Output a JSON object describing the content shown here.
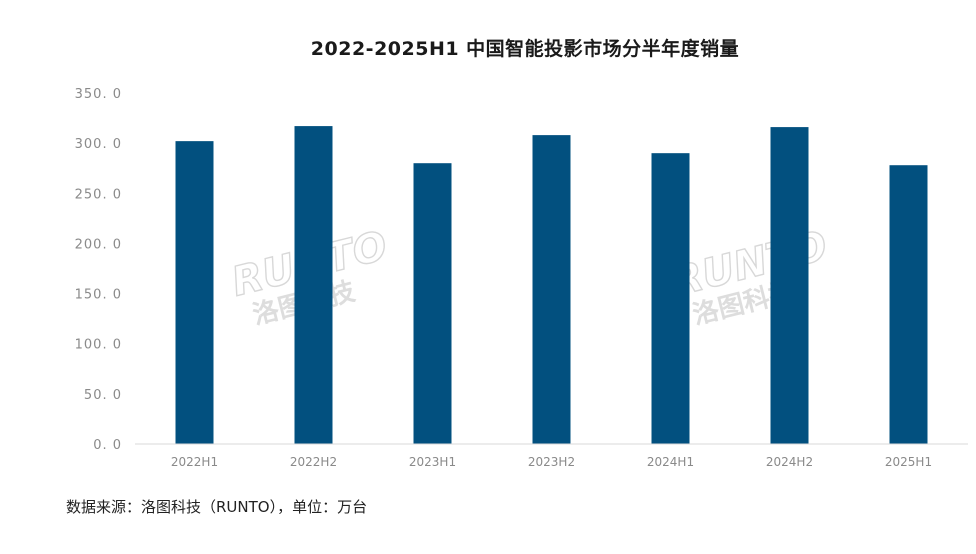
{
  "chart_data": {
    "type": "bar",
    "title": "2022-2025H1 中国智能投影市场分半年度销量",
    "categories": [
      "2022H1",
      "2022H2",
      "2023H1",
      "2023H2",
      "2024H1",
      "2024H2",
      "2025H1"
    ],
    "values": [
      302,
      317,
      280,
      308,
      290,
      316,
      278
    ],
    "ylim": [
      0,
      350
    ],
    "yticks": [
      "0. 0",
      "50. 0",
      "100. 0",
      "150. 0",
      "200. 0",
      "250. 0",
      "300. 0",
      "350. 0"
    ],
    "ytick_values": [
      0,
      50,
      100,
      150,
      200,
      250,
      300,
      350
    ],
    "bar_color": "#02507f",
    "grid": false,
    "legend": "none",
    "source": "数据来源：洛图科技（RUNTO），单位：万台"
  },
  "watermark": {
    "brand": "RUNTO",
    "brand_cn": "洛图科技"
  }
}
